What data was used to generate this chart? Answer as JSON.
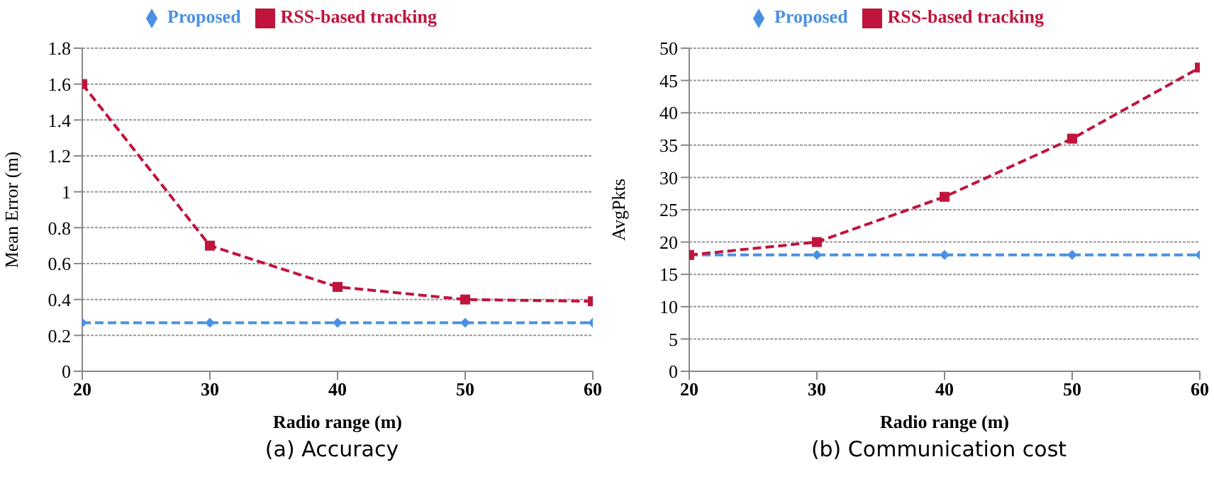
{
  "chart_data": [
    {
      "type": "line",
      "title": "(a) Accuracy",
      "xlabel": "Radio range (m)",
      "ylabel": "Mean Error (m)",
      "x": [
        20,
        30,
        40,
        50,
        60
      ],
      "xlim": [
        20,
        60
      ],
      "xticks": [
        20,
        30,
        40,
        50,
        60
      ],
      "ylim": [
        0,
        1.8
      ],
      "yticks": [
        0,
        0.2,
        0.4,
        0.6,
        0.8,
        1,
        1.2,
        1.4,
        1.6,
        1.8
      ],
      "grid": "y",
      "legend": "top",
      "line_style": "dashed",
      "series": [
        {
          "name": "Proposed",
          "color": "#4a90e2",
          "marker": "diamond",
          "values": [
            0.27,
            0.27,
            0.27,
            0.27,
            0.27
          ]
        },
        {
          "name": "RSS-based tracking",
          "color": "#c0143c",
          "marker": "square",
          "values": [
            1.6,
            0.7,
            0.47,
            0.4,
            0.39
          ]
        }
      ]
    },
    {
      "type": "line",
      "title": "(b) Communication cost",
      "xlabel": "Radio range (m)",
      "ylabel": "AvgPkts",
      "x": [
        20,
        30,
        40,
        50,
        60
      ],
      "xlim": [
        20,
        60
      ],
      "xticks": [
        20,
        30,
        40,
        50,
        60
      ],
      "ylim": [
        0,
        50
      ],
      "yticks": [
        0,
        5,
        10,
        15,
        20,
        25,
        30,
        35,
        40,
        45,
        50
      ],
      "grid": "y",
      "legend": "top",
      "line_style": "dashed",
      "series": [
        {
          "name": "Proposed",
          "color": "#4a90e2",
          "marker": "diamond",
          "values": [
            18,
            18,
            18,
            18,
            18
          ]
        },
        {
          "name": "RSS-based tracking",
          "color": "#c0143c",
          "marker": "square",
          "values": [
            18,
            20,
            27,
            36,
            47
          ]
        }
      ]
    }
  ]
}
